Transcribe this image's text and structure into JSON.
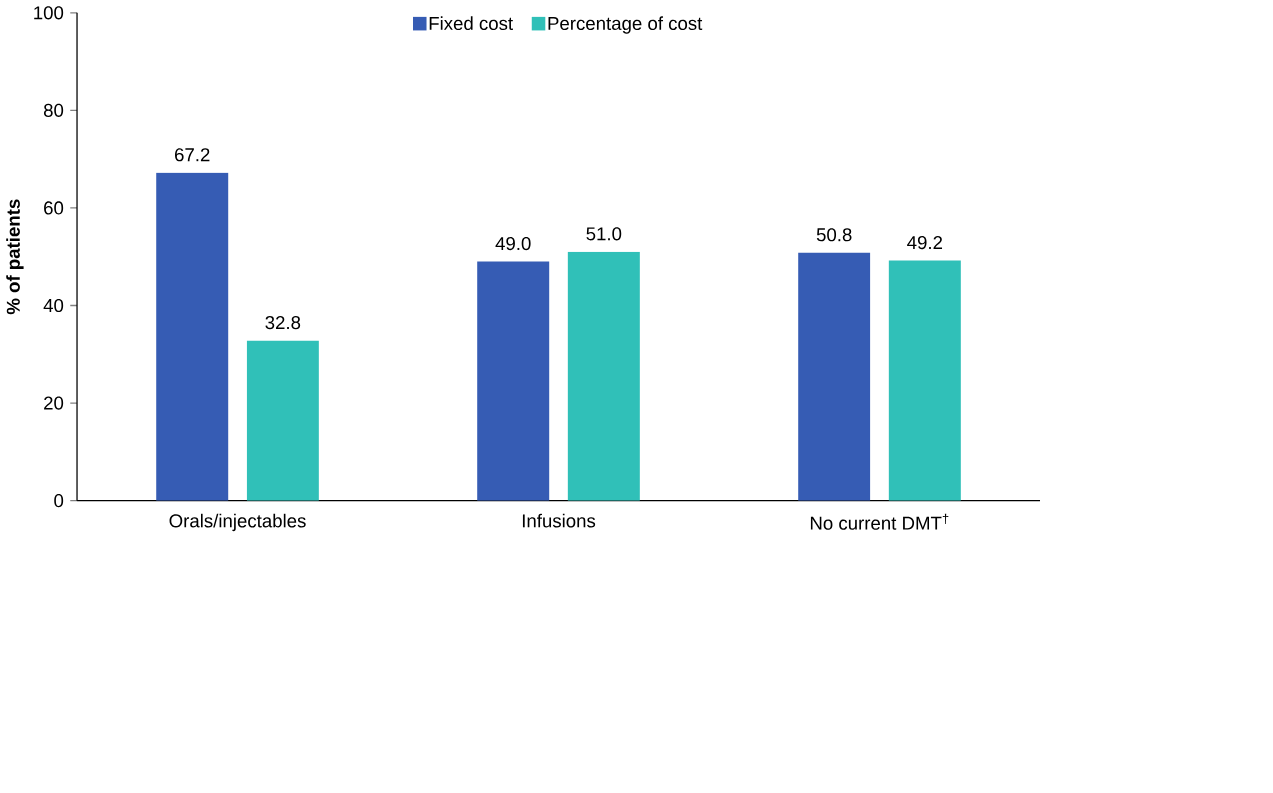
{
  "chart_data": {
    "type": "bar",
    "ylabel": "% of patients",
    "categories": [
      "Orals/injectables",
      "Infusions",
      "No current DMT$^{†}$"
    ],
    "series": [
      {
        "name": "Fixed cost",
        "color": "#365cb4",
        "values": [
          67.2,
          49.0,
          50.8
        ],
        "value_labels": [
          "67.2",
          "49.0",
          "50.8"
        ]
      },
      {
        "name": "Percentage of cost",
        "color": "#30c0b8",
        "values": [
          32.8,
          51.0,
          49.2
        ],
        "value_labels": [
          "32.8",
          "51.0",
          "49.2"
        ]
      }
    ],
    "ylim": [
      0,
      100
    ],
    "yticks": [
      0,
      20,
      40,
      60,
      80,
      100
    ],
    "grid": false,
    "legend": "top"
  }
}
